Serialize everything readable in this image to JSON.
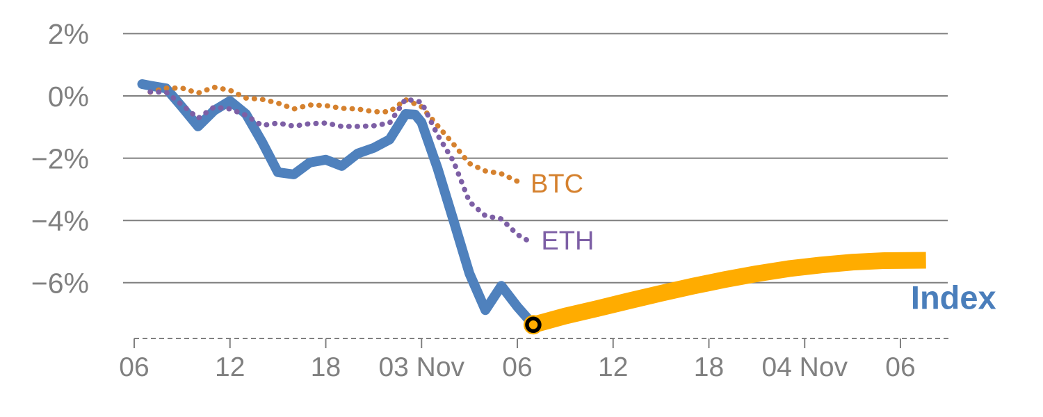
{
  "chart_data": {
    "type": "line",
    "title": "",
    "grid": true,
    "legend_position": "inline-labels",
    "ylim": [
      -7.8,
      2.05
    ],
    "xlim_hours": [
      0,
      51
    ],
    "style": {
      "grid_color": "#7F7F7F",
      "axis_color": "#808080",
      "tick_label_color": "#808080",
      "background_color": "#FFFFFF"
    },
    "x_axis": {
      "unit": "time (6-hour ticks, Nov 2 - Nov 4)",
      "ticks": [
        {
          "hour": 0,
          "label": "06"
        },
        {
          "hour": 6,
          "label": "12"
        },
        {
          "hour": 12,
          "label": "18"
        },
        {
          "hour": 18,
          "label": "03 Nov"
        },
        {
          "hour": 24,
          "label": "06"
        },
        {
          "hour": 30,
          "label": "12"
        },
        {
          "hour": 36,
          "label": "18"
        },
        {
          "hour": 42,
          "label": "04 Nov"
        },
        {
          "hour": 48,
          "label": "06"
        }
      ]
    },
    "y_axis": {
      "unit": "percent change",
      "ticks": [
        {
          "value": 2,
          "label": "2%"
        },
        {
          "value": 0,
          "label": "0%"
        },
        {
          "value": -2,
          "label": "−2%"
        },
        {
          "value": -4,
          "label": "−4%"
        },
        {
          "value": -6,
          "label": "−6%"
        }
      ]
    },
    "series": [
      {
        "name": "Index",
        "segment": "history",
        "color": "#4F81BD",
        "line_style": "solid",
        "line_width": 14,
        "points": [
          [
            0.5,
            0.38
          ],
          [
            1,
            0.33
          ],
          [
            2,
            0.24
          ],
          [
            3,
            -0.36
          ],
          [
            4,
            -0.98
          ],
          [
            5,
            -0.47
          ],
          [
            6,
            -0.16
          ],
          [
            7,
            -0.58
          ],
          [
            8,
            -1.47
          ],
          [
            9,
            -2.45
          ],
          [
            10,
            -2.52
          ],
          [
            11,
            -2.14
          ],
          [
            12,
            -2.05
          ],
          [
            13,
            -2.25
          ],
          [
            14,
            -1.85
          ],
          [
            15,
            -1.67
          ],
          [
            16,
            -1.4
          ],
          [
            17,
            -0.58
          ],
          [
            17.6,
            -0.6
          ],
          [
            18,
            -0.85
          ],
          [
            19,
            -2.32
          ],
          [
            20,
            -4.0
          ],
          [
            21,
            -5.7
          ],
          [
            22,
            -6.88
          ],
          [
            23,
            -6.1
          ],
          [
            24,
            -6.77
          ],
          [
            25,
            -7.35
          ]
        ]
      },
      {
        "name": "Index",
        "segment": "forecast",
        "color": "#FFAC00",
        "line_style": "solid",
        "line_width": 24,
        "points": [
          [
            25,
            -7.35
          ],
          [
            27,
            -7.07
          ],
          [
            29,
            -6.83
          ],
          [
            31,
            -6.58
          ],
          [
            33,
            -6.34
          ],
          [
            35,
            -6.11
          ],
          [
            37,
            -5.9
          ],
          [
            39,
            -5.71
          ],
          [
            41,
            -5.55
          ],
          [
            43,
            -5.43
          ],
          [
            45,
            -5.34
          ],
          [
            47,
            -5.29
          ],
          [
            49.6,
            -5.28
          ]
        ]
      },
      {
        "name": "BTC",
        "segment": "history",
        "color": "#D5812E",
        "line_style": "dotted",
        "line_width": 7.5,
        "points": [
          [
            1,
            0.12
          ],
          [
            2,
            0.25
          ],
          [
            3,
            0.25
          ],
          [
            4,
            0.09
          ],
          [
            5,
            0.28
          ],
          [
            6,
            0.18
          ],
          [
            7,
            -0.07
          ],
          [
            8,
            -0.11
          ],
          [
            9,
            -0.23
          ],
          [
            10,
            -0.42
          ],
          [
            11,
            -0.29
          ],
          [
            12,
            -0.31
          ],
          [
            13,
            -0.4
          ],
          [
            14,
            -0.42
          ],
          [
            15,
            -0.51
          ],
          [
            16,
            -0.51
          ],
          [
            17,
            -0.12
          ],
          [
            18,
            -0.35
          ],
          [
            19,
            -0.95
          ],
          [
            20,
            -1.55
          ],
          [
            21,
            -2.17
          ],
          [
            22,
            -2.41
          ],
          [
            23,
            -2.5
          ],
          [
            24,
            -2.74
          ]
        ]
      },
      {
        "name": "ETH",
        "segment": "history",
        "color": "#7D5FA5",
        "line_style": "dotted",
        "line_width": 7.5,
        "points": [
          [
            1,
            0.13
          ],
          [
            2,
            0.12
          ],
          [
            3,
            -0.29
          ],
          [
            4,
            -0.72
          ],
          [
            5,
            -0.36
          ],
          [
            6,
            -0.42
          ],
          [
            7,
            -0.62
          ],
          [
            8,
            -0.95
          ],
          [
            9,
            -0.87
          ],
          [
            10,
            -0.97
          ],
          [
            11,
            -0.89
          ],
          [
            12,
            -0.87
          ],
          [
            13,
            -0.98
          ],
          [
            14,
            -0.98
          ],
          [
            15,
            -0.96
          ],
          [
            16,
            -0.87
          ],
          [
            17,
            -0.1
          ],
          [
            18,
            -0.2
          ],
          [
            19,
            -1.25
          ],
          [
            20,
            -2.1
          ],
          [
            21,
            -3.4
          ],
          [
            22,
            -3.85
          ],
          [
            23,
            -3.95
          ],
          [
            24,
            -4.45
          ],
          [
            24.6,
            -4.63
          ]
        ]
      }
    ],
    "marker": {
      "series": "Index",
      "hour": 25,
      "value": -7.35,
      "halo_color": "#FFAC00",
      "ring_color": "#000000",
      "fill_color": "#FFAC00"
    },
    "series_labels": [
      {
        "text": "BTC",
        "color": "#D5812E",
        "hour": 24.83,
        "value": -2.81,
        "font_size": 38,
        "bold": false
      },
      {
        "text": "ETH",
        "color": "#7D5FA5",
        "hour": 25.5,
        "value": -4.64,
        "font_size": 38,
        "bold": false
      },
      {
        "text": "Index",
        "color": "#4A7EBB",
        "hour": 48.65,
        "value": -6.47,
        "font_size": 47,
        "bold": true
      }
    ]
  }
}
